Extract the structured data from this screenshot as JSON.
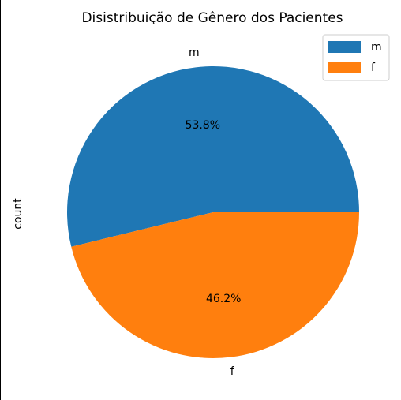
{
  "chart_data": {
    "type": "pie",
    "title": "Disistribuição de Gênero dos Pacientes",
    "ylabel": "count",
    "categories": [
      "m",
      "f"
    ],
    "percent_labels": [
      "53.8%",
      "46.2%"
    ],
    "values": [
      53.8,
      46.2
    ],
    "colors": [
      "#1f77b4",
      "#ff7f0e"
    ],
    "legend": {
      "placement": "top-right",
      "entries": [
        "m",
        "f"
      ]
    }
  }
}
